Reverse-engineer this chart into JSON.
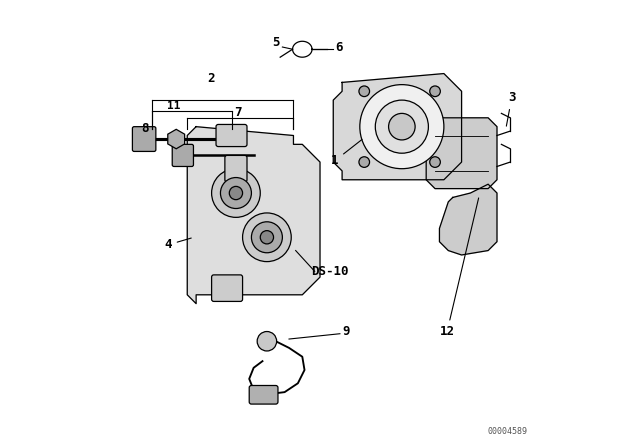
{
  "bg_color": "#ffffff",
  "line_color": "#000000",
  "watermark": "00004589",
  "fig_width": 6.4,
  "fig_height": 4.48,
  "dpi": 100,
  "label_fontsize": 9,
  "label_color": "#000000",
  "caliper_body_color": "#dedede",
  "caliper_fill": "#d8d8d8",
  "piston_outer_color": "#cccccc",
  "piston_inner_color": "#aaaaaa",
  "piston_core_color": "#888888",
  "carrier_color": "#d8d8d8",
  "pad_color": "#cccccc",
  "bolt_color": "#aaaaaa",
  "wire_color": "#000000",
  "sensor_color": "#c8c8c8"
}
